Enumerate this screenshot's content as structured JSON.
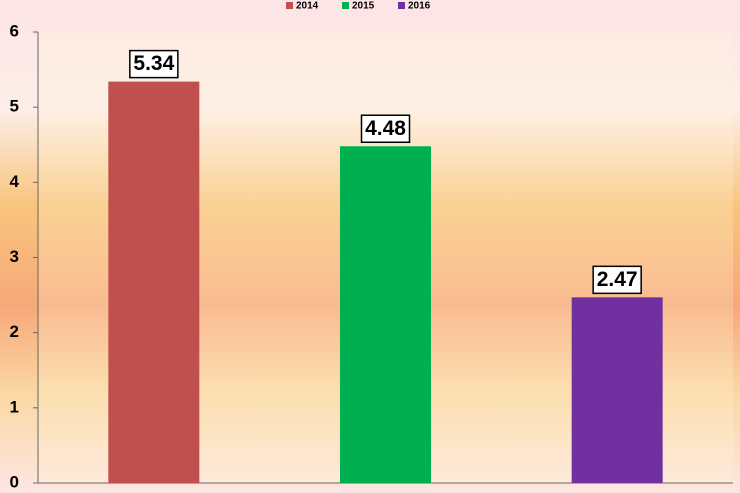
{
  "chart_data": {
    "type": "bar",
    "categories": [
      null
    ],
    "series": [
      {
        "name": "2014",
        "color": "#c0504d",
        "values": [
          5.34
        ]
      },
      {
        "name": "2015",
        "color": "#00b050",
        "values": [
          4.48
        ]
      },
      {
        "name": "2016",
        "color": "#7030a0",
        "values": [
          2.47
        ]
      }
    ],
    "ylim": [
      0,
      6
    ],
    "yticks": [
      0,
      1,
      2,
      3,
      4,
      5,
      6
    ],
    "grid": false,
    "legend": "top"
  }
}
